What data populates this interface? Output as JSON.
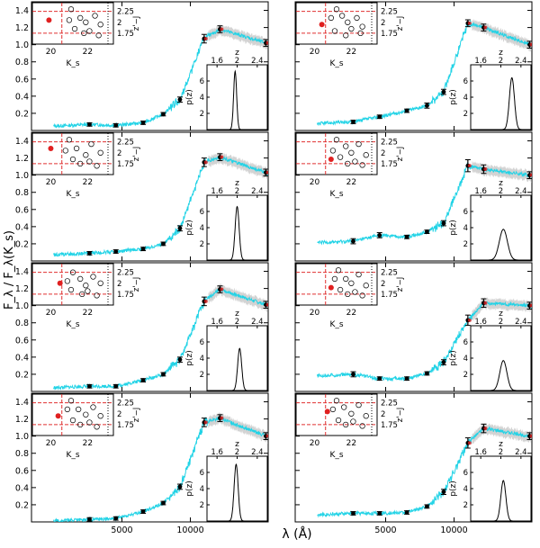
{
  "figure": {
    "xlabel": "λ (Å)",
    "ylabel": "F_λ / F_λ(K_s)",
    "x_tick_labels": [
      "5000",
      "10000"
    ],
    "y_tick_labels": [
      "0.2",
      "0.4",
      "0.6",
      "0.8",
      "1.0",
      "1.2",
      "1.4"
    ]
  },
  "inset_cc": {
    "xlabel": "K_s",
    "ylabel": "z'−J",
    "x_ticks": [
      "20",
      "22"
    ],
    "y_ticks": [
      "2.25",
      "2",
      "1.75"
    ],
    "hlines": [
      2.25,
      1.75
    ],
    "vline": 20.6
  },
  "inset_pz": {
    "xlabel": "z",
    "ylabel": "p(z)",
    "x_ticks": [
      "1.6",
      "2",
      "2.4"
    ],
    "y_ticks": [
      "2",
      "4",
      "6"
    ]
  },
  "colors": {
    "template": "#22d3e6",
    "band": "#c8c8c8",
    "points": "#000000",
    "highlight": "#e02020",
    "cut_lines": "#e03030"
  },
  "chart_data": {
    "type": "scatter",
    "xlim": [
      2000,
      22000
    ],
    "ylim": [
      0,
      1.5
    ],
    "x_scale": "log",
    "bands_x": [
      3600,
      4700,
      6200,
      7600,
      9000,
      11500,
      13500,
      21500
    ],
    "panels": [
      {
        "sed": [
          0.07,
          0.06,
          0.09,
          0.19,
          0.36,
          1.07,
          1.18,
          1.02
        ],
        "err": [
          0.02,
          0.02,
          0.02,
          0.02,
          0.03,
          0.05,
          0.04,
          0.04
        ],
        "pz_peak": 1.96,
        "pz_sigma": 0.03,
        "pz_height": 7.2,
        "cc_red": [
          19.9,
          2.05
        ],
        "cc_points": [
          [
            21.1,
            2.3
          ],
          [
            21.6,
            2.1
          ],
          [
            21.9,
            2.0
          ],
          [
            22.4,
            2.15
          ],
          [
            22.7,
            1.95
          ],
          [
            21.3,
            1.85
          ],
          [
            21.8,
            1.75
          ],
          [
            22.1,
            1.8
          ],
          [
            22.6,
            1.7
          ],
          [
            21.0,
            2.05
          ]
        ]
      },
      {
        "sed": [
          0.1,
          0.16,
          0.23,
          0.29,
          0.45,
          1.25,
          1.2,
          1.0
        ],
        "err": [
          0.02,
          0.02,
          0.02,
          0.03,
          0.03,
          0.04,
          0.04,
          0.04
        ],
        "pz_peak": 2.22,
        "pz_sigma": 0.05,
        "pz_height": 6.4,
        "cc_red": [
          20.4,
          1.95
        ],
        "cc_points": [
          [
            21.2,
            2.3
          ],
          [
            21.5,
            2.15
          ],
          [
            21.8,
            2.0
          ],
          [
            22.3,
            2.1
          ],
          [
            22.6,
            1.9
          ],
          [
            21.1,
            1.8
          ],
          [
            21.7,
            1.7
          ],
          [
            22.0,
            1.85
          ],
          [
            22.5,
            1.75
          ],
          [
            20.9,
            2.1
          ]
        ]
      },
      {
        "sed": [
          0.09,
          0.11,
          0.14,
          0.2,
          0.38,
          1.15,
          1.21,
          1.03
        ],
        "err": [
          0.02,
          0.02,
          0.02,
          0.02,
          0.03,
          0.05,
          0.04,
          0.04
        ],
        "pz_peak": 2.0,
        "pz_sigma": 0.04,
        "pz_height": 6.6,
        "cc_red": [
          20.0,
          2.1
        ],
        "cc_points": [
          [
            21.0,
            2.3
          ],
          [
            21.4,
            2.1
          ],
          [
            21.9,
            1.95
          ],
          [
            22.2,
            2.2
          ],
          [
            22.7,
            2.0
          ],
          [
            21.2,
            1.85
          ],
          [
            21.6,
            1.75
          ],
          [
            22.1,
            1.8
          ],
          [
            22.5,
            1.7
          ],
          [
            20.8,
            2.05
          ]
        ]
      },
      {
        "sed": [
          0.23,
          0.3,
          0.28,
          0.34,
          0.44,
          1.11,
          1.07,
          1.0
        ],
        "err": [
          0.03,
          0.03,
          0.02,
          0.02,
          0.03,
          0.07,
          0.05,
          0.04
        ],
        "pz_peak": 2.05,
        "pz_sigma": 0.08,
        "pz_height": 3.8,
        "cc_red": [
          20.9,
          1.85
        ],
        "cc_points": [
          [
            21.2,
            2.3
          ],
          [
            21.7,
            2.15
          ],
          [
            22.0,
            2.0
          ],
          [
            22.4,
            2.2
          ],
          [
            22.8,
            1.95
          ],
          [
            21.4,
            1.9
          ],
          [
            21.8,
            1.75
          ],
          [
            22.2,
            1.8
          ],
          [
            22.6,
            1.72
          ],
          [
            21.0,
            2.05
          ]
        ]
      },
      {
        "sed": [
          0.06,
          0.06,
          0.13,
          0.2,
          0.37,
          1.05,
          1.19,
          1.01
        ],
        "err": [
          0.02,
          0.02,
          0.02,
          0.02,
          0.03,
          0.05,
          0.04,
          0.04
        ],
        "pz_peak": 2.05,
        "pz_sigma": 0.04,
        "pz_height": 5.2,
        "cc_red": [
          20.5,
          2.0
        ],
        "cc_points": [
          [
            21.2,
            2.25
          ],
          [
            21.6,
            2.1
          ],
          [
            21.9,
            1.95
          ],
          [
            22.3,
            2.15
          ],
          [
            22.7,
            2.0
          ],
          [
            21.1,
            1.85
          ],
          [
            21.7,
            1.75
          ],
          [
            22.0,
            1.82
          ],
          [
            22.5,
            1.72
          ],
          [
            20.9,
            2.05
          ]
        ]
      },
      {
        "sed": [
          0.2,
          0.15,
          0.15,
          0.21,
          0.34,
          0.83,
          1.03,
          1.0
        ],
        "err": [
          0.03,
          0.02,
          0.02,
          0.02,
          0.03,
          0.06,
          0.05,
          0.04
        ],
        "pz_peak": 2.05,
        "pz_sigma": 0.07,
        "pz_height": 3.7,
        "cc_red": [
          20.9,
          1.9
        ],
        "cc_points": [
          [
            21.3,
            2.3
          ],
          [
            21.7,
            2.1
          ],
          [
            22.0,
            2.0
          ],
          [
            22.4,
            2.2
          ],
          [
            22.8,
            1.95
          ],
          [
            21.4,
            1.85
          ],
          [
            21.8,
            1.75
          ],
          [
            22.2,
            1.8
          ],
          [
            22.6,
            1.72
          ],
          [
            21.1,
            2.1
          ]
        ]
      },
      {
        "sed": [
          0.03,
          0.04,
          0.12,
          0.22,
          0.41,
          1.16,
          1.21,
          1.0
        ],
        "err": [
          0.02,
          0.02,
          0.02,
          0.02,
          0.03,
          0.05,
          0.04,
          0.04
        ],
        "pz_peak": 1.98,
        "pz_sigma": 0.04,
        "pz_height": 7.0,
        "cc_red": [
          20.4,
          1.95
        ],
        "cc_points": [
          [
            21.1,
            2.3
          ],
          [
            21.5,
            2.1
          ],
          [
            21.9,
            1.98
          ],
          [
            22.3,
            2.15
          ],
          [
            22.7,
            1.95
          ],
          [
            21.2,
            1.85
          ],
          [
            21.6,
            1.75
          ],
          [
            22.1,
            1.8
          ],
          [
            22.5,
            1.7
          ],
          [
            20.9,
            2.1
          ]
        ]
      },
      {
        "sed": [
          0.1,
          0.1,
          0.11,
          0.18,
          0.35,
          0.92,
          1.09,
          1.0
        ],
        "err": [
          0.02,
          0.02,
          0.02,
          0.02,
          0.03,
          0.06,
          0.05,
          0.04
        ],
        "pz_peak": 2.05,
        "pz_sigma": 0.05,
        "pz_height": 5.0,
        "cc_red": [
          20.7,
          2.05
        ],
        "cc_points": [
          [
            21.2,
            2.3
          ],
          [
            21.6,
            2.15
          ],
          [
            22.0,
            2.0
          ],
          [
            22.4,
            2.2
          ],
          [
            22.8,
            1.95
          ],
          [
            21.3,
            1.85
          ],
          [
            21.7,
            1.75
          ],
          [
            22.1,
            1.82
          ],
          [
            22.6,
            1.72
          ],
          [
            21.0,
            2.1
          ]
        ]
      }
    ]
  }
}
